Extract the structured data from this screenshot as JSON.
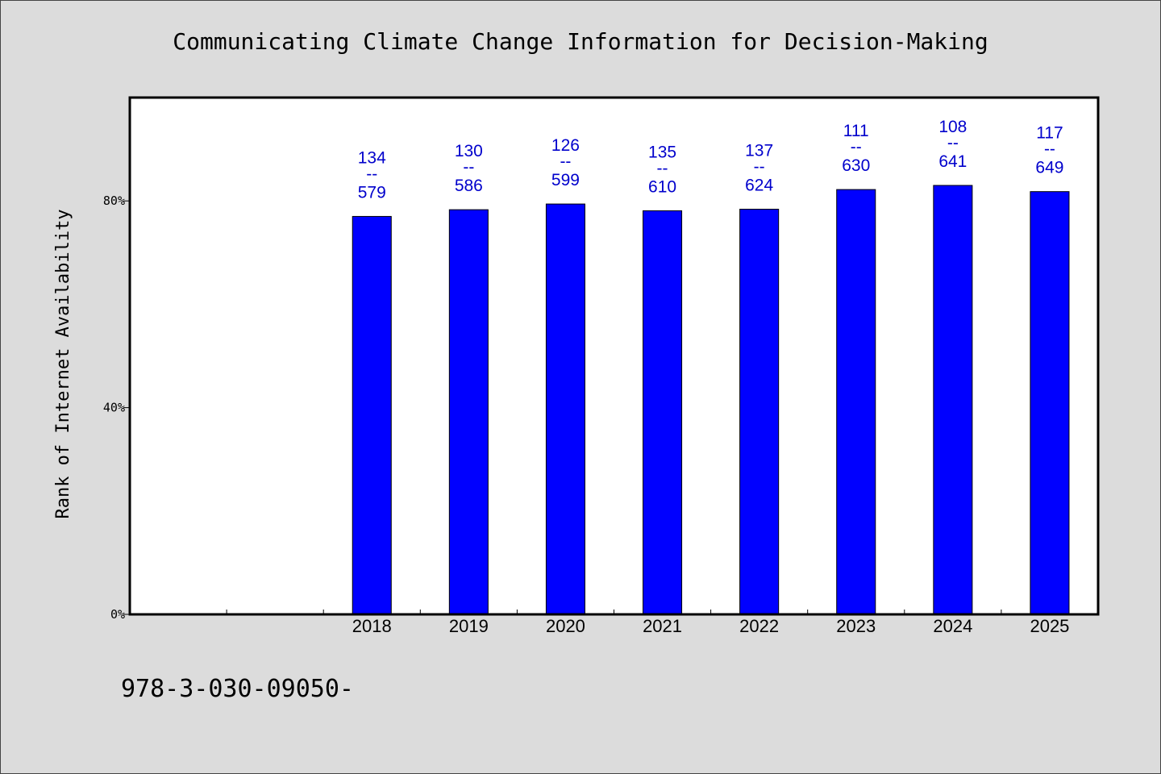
{
  "chart_data": {
    "type": "bar",
    "title": "Communicating Climate Change Information for Decision-Making",
    "ylabel": "Rank of Internet Availability",
    "xlabel": "",
    "x_slots": 10,
    "categories": [
      "",
      "",
      "2018",
      "2019",
      "2020",
      "2021",
      "2022",
      "2023",
      "2024",
      "2025"
    ],
    "values": [
      null,
      null,
      77,
      78.3,
      79.4,
      78.1,
      78.4,
      82.2,
      83,
      81.8
    ],
    "labels_top": [
      "",
      "",
      "134",
      "130",
      "126",
      "135",
      "137",
      "111",
      "108",
      "117"
    ],
    "labels_sep": "--",
    "labels_bottom": [
      "",
      "",
      "579",
      "586",
      "599",
      "610",
      "624",
      "630",
      "641",
      "649"
    ],
    "ylim": [
      0,
      100
    ],
    "yticks": [
      0,
      40,
      80
    ],
    "ytick_labels": [
      "0%",
      "40%",
      "80%"
    ],
    "bar_color": "#0000ff",
    "label_color": "#0000cc",
    "grid": false,
    "legend": false
  },
  "footnote": "978-3-030-09050-"
}
